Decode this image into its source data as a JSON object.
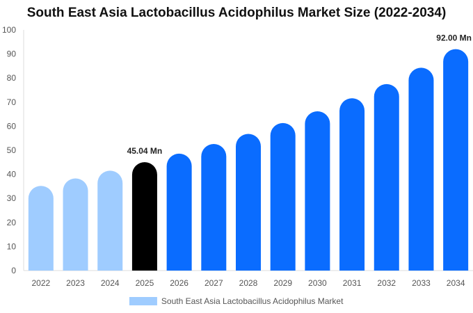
{
  "chart_data": {
    "type": "bar",
    "title": "South East Asia Lactobacillus Acidophilus Market Size (2022-2034)",
    "xlabel": "",
    "ylabel": "",
    "ylim": [
      0,
      100
    ],
    "yticks": [
      0,
      10,
      20,
      30,
      40,
      50,
      60,
      70,
      80,
      90,
      100
    ],
    "categories": [
      "2022",
      "2023",
      "2024",
      "2025",
      "2026",
      "2027",
      "2028",
      "2029",
      "2030",
      "2031",
      "2032",
      "2033",
      "2034"
    ],
    "series": [
      {
        "name": "South East Asia Lactobacillus Acidophilus Market",
        "values": [
          35.2,
          38.3,
          41.5,
          45.04,
          48.6,
          52.6,
          56.8,
          61.3,
          66.2,
          71.6,
          77.5,
          84.3,
          92.0
        ]
      }
    ],
    "bar_colors": [
      "#9fccff",
      "#9fccff",
      "#9fccff",
      "#000000",
      "#0a6cff",
      "#0a6cff",
      "#0a6cff",
      "#0a6cff",
      "#0a6cff",
      "#0a6cff",
      "#0a6cff",
      "#0a6cff",
      "#0a6cff"
    ],
    "data_labels": [
      {
        "category": "2025",
        "text": "45.04 Mn"
      },
      {
        "category": "2034",
        "text": "92.00 Mn"
      }
    ],
    "legend": {
      "placement": "bottom",
      "color": "#9fccff"
    },
    "grid": false
  }
}
